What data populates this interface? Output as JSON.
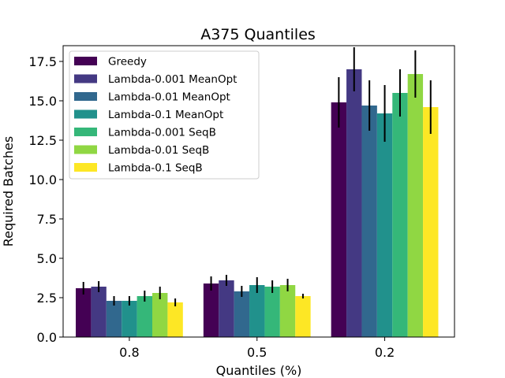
{
  "chart_data": {
    "type": "bar",
    "title": "A375 Quantiles",
    "xlabel": "Quantiles (%)",
    "ylabel": "Required Batches",
    "categories": [
      "0.8",
      "0.5",
      "0.2"
    ],
    "ylim": [
      0,
      18.5
    ],
    "yticks": [
      0.0,
      2.5,
      5.0,
      7.5,
      10.0,
      12.5,
      15.0,
      17.5
    ],
    "ytick_labels": [
      "0.0",
      "2.5",
      "5.0",
      "7.5",
      "10.0",
      "12.5",
      "15.0",
      "17.5"
    ],
    "legend_position": "top-left",
    "grid": false,
    "series": [
      {
        "name": "Greedy",
        "color": "#440154",
        "values": [
          3.1,
          3.4,
          14.9
        ],
        "errors": [
          0.4,
          0.45,
          1.6
        ]
      },
      {
        "name": "Lambda-0.001 MeanOpt",
        "color": "#443983",
        "values": [
          3.2,
          3.6,
          17.0
        ],
        "errors": [
          0.35,
          0.35,
          1.4
        ]
      },
      {
        "name": "Lambda-0.01 MeanOpt",
        "color": "#31688e",
        "values": [
          2.3,
          2.9,
          14.7
        ],
        "errors": [
          0.3,
          0.35,
          1.6
        ]
      },
      {
        "name": "Lambda-0.1 MeanOpt",
        "color": "#21918c",
        "values": [
          2.3,
          3.3,
          14.2
        ],
        "errors": [
          0.3,
          0.5,
          1.8
        ]
      },
      {
        "name": "Lambda-0.001 SeqB",
        "color": "#35b779",
        "values": [
          2.6,
          3.2,
          15.5
        ],
        "errors": [
          0.35,
          0.4,
          1.5
        ]
      },
      {
        "name": "Lambda-0.01 SeqB",
        "color": "#90d743",
        "values": [
          2.8,
          3.3,
          16.7
        ],
        "errors": [
          0.4,
          0.4,
          1.5
        ]
      },
      {
        "name": "Lambda-0.1 SeqB",
        "color": "#fde725",
        "values": [
          2.2,
          2.6,
          14.6
        ],
        "errors": [
          0.25,
          0.15,
          1.7
        ]
      }
    ]
  }
}
